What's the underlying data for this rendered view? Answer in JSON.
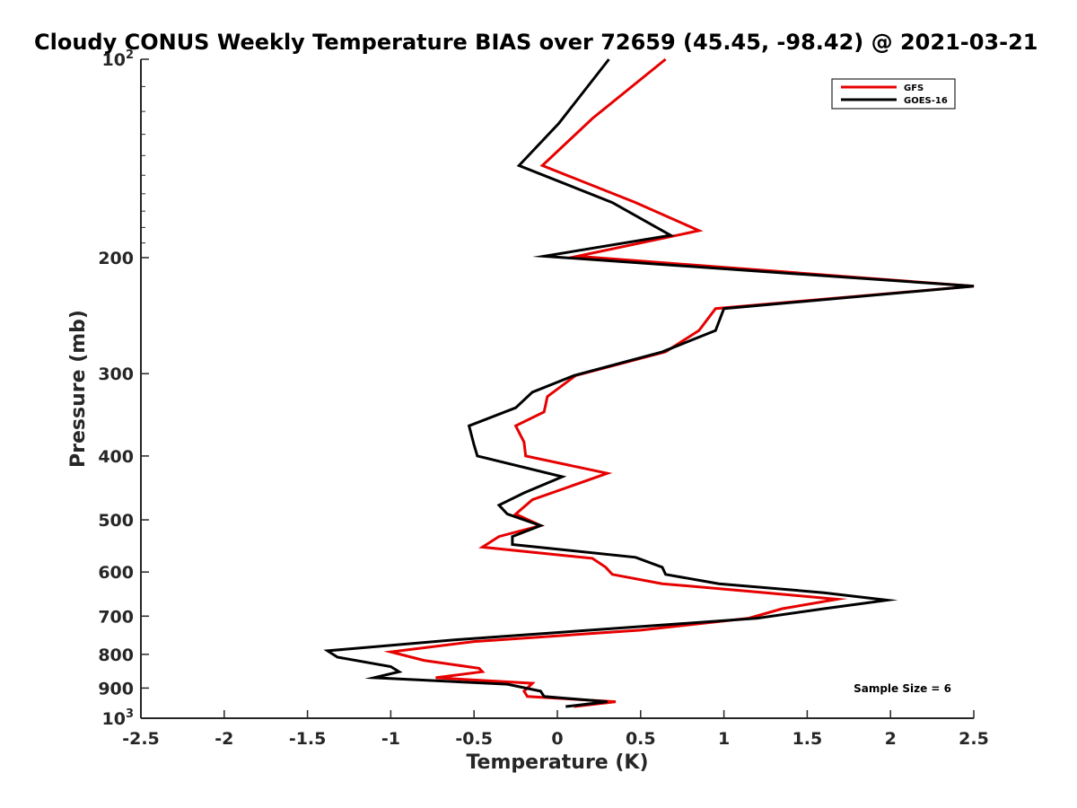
{
  "chart_data": {
    "type": "line",
    "title": "Cloudy CONUS Weekly Temperature BIAS over 72659 (45.45, -98.42) @ 2021-03-21",
    "xlabel": "Temperature (K)",
    "ylabel": "Pressure (mb)",
    "xlim": [
      -2.5,
      2.5
    ],
    "ylim": [
      100,
      1000
    ],
    "y_scale": "log",
    "y_reversed": true,
    "x_ticks": [
      "-2.5",
      "-2",
      "-1.5",
      "-1",
      "-0.5",
      "0",
      "0.5",
      "1",
      "1.5",
      "2",
      "2.5"
    ],
    "y_ticks": [
      {
        "value": 100,
        "label": "10",
        "sup": "2"
      },
      {
        "value": 200,
        "label": "200",
        "sup": ""
      },
      {
        "value": 300,
        "label": "300",
        "sup": ""
      },
      {
        "value": 400,
        "label": "400",
        "sup": ""
      },
      {
        "value": 500,
        "label": "500",
        "sup": ""
      },
      {
        "value": 600,
        "label": "600",
        "sup": ""
      },
      {
        "value": 700,
        "label": "700",
        "sup": ""
      },
      {
        "value": 800,
        "label": "800",
        "sup": ""
      },
      {
        "value": 900,
        "label": "900",
        "sup": ""
      },
      {
        "value": 1000,
        "label": "10",
        "sup": "3"
      }
    ],
    "grid": false,
    "legend_position": "top-right",
    "annotation": "Sample Size = 6",
    "series": [
      {
        "name": "GFS",
        "color": "#e60000",
        "points": [
          [
            0.65,
            100
          ],
          [
            0.21,
            123
          ],
          [
            -0.09,
            145
          ],
          [
            0.47,
            165
          ],
          [
            0.85,
            182
          ],
          [
            0.12,
            199
          ],
          [
            2.5,
            221
          ],
          [
            0.95,
            239
          ],
          [
            0.85,
            258
          ],
          [
            0.65,
            278
          ],
          [
            0.11,
            302
          ],
          [
            -0.06,
            325
          ],
          [
            -0.08,
            343
          ],
          [
            -0.25,
            360
          ],
          [
            -0.2,
            381
          ],
          [
            -0.19,
            400
          ],
          [
            0.3,
            425
          ],
          [
            -0.15,
            466
          ],
          [
            -0.25,
            490
          ],
          [
            -0.1,
            510
          ],
          [
            -0.35,
            530
          ],
          [
            -0.45,
            550
          ],
          [
            0.21,
            572
          ],
          [
            0.29,
            590
          ],
          [
            0.33,
            605
          ],
          [
            0.63,
            625
          ],
          [
            1.25,
            645
          ],
          [
            1.68,
            660
          ],
          [
            1.35,
            682
          ],
          [
            1.15,
            705
          ],
          [
            0.5,
            735
          ],
          [
            -0.5,
            765
          ],
          [
            -1.0,
            793
          ],
          [
            -0.8,
            817
          ],
          [
            -0.47,
            840
          ],
          [
            -0.45,
            850
          ],
          [
            -0.73,
            868
          ],
          [
            -0.15,
            885
          ],
          [
            -0.2,
            910
          ],
          [
            -0.18,
            927
          ],
          [
            0.35,
            944
          ],
          [
            0.1,
            960
          ]
        ]
      },
      {
        "name": "GOES-16",
        "color": "#000000",
        "points": [
          [
            0.31,
            100
          ],
          [
            0.01,
            125
          ],
          [
            -0.23,
            145
          ],
          [
            0.33,
            165
          ],
          [
            0.68,
            185
          ],
          [
            -0.08,
            199
          ],
          [
            2.5,
            221
          ],
          [
            1.0,
            239
          ],
          [
            0.95,
            258
          ],
          [
            0.63,
            278
          ],
          [
            0.1,
            302
          ],
          [
            -0.15,
            320
          ],
          [
            -0.25,
            338
          ],
          [
            -0.53,
            360
          ],
          [
            -0.5,
            385
          ],
          [
            -0.48,
            400
          ],
          [
            0.03,
            430
          ],
          [
            -0.2,
            455
          ],
          [
            -0.35,
            475
          ],
          [
            -0.3,
            490
          ],
          [
            -0.1,
            510
          ],
          [
            -0.27,
            530
          ],
          [
            -0.27,
            545
          ],
          [
            0.47,
            570
          ],
          [
            0.63,
            590
          ],
          [
            0.65,
            605
          ],
          [
            0.97,
            625
          ],
          [
            1.6,
            645
          ],
          [
            1.98,
            662
          ],
          [
            1.6,
            682
          ],
          [
            1.2,
            705
          ],
          [
            -0.6,
            760
          ],
          [
            -1.38,
            790
          ],
          [
            -1.32,
            808
          ],
          [
            -1.0,
            835
          ],
          [
            -0.95,
            850
          ],
          [
            -1.1,
            868
          ],
          [
            -0.3,
            888
          ],
          [
            -0.1,
            910
          ],
          [
            -0.08,
            927
          ],
          [
            0.3,
            944
          ],
          [
            0.05,
            960
          ]
        ]
      }
    ]
  }
}
